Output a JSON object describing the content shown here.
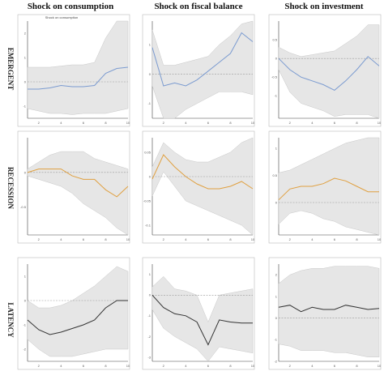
{
  "figure": {
    "column_titles": [
      "Shock on consumption",
      "Shock on fiscal balance",
      "Shock on investment"
    ],
    "row_labels": [
      "EMERGENT",
      "RECESSION",
      "LATENCY"
    ]
  },
  "chart_data": [
    {
      "type": "line",
      "row": 0,
      "col": 0,
      "title": "Shock on consumption",
      "panel_title": "Shock on consumption",
      "x": [
        1,
        2,
        3,
        4,
        5,
        6,
        7,
        8,
        9,
        10
      ],
      "xticks": [
        "2",
        "4",
        "6",
        "8",
        "10"
      ],
      "xlim": [
        1,
        10
      ],
      "ylim": [
        -1.5,
        2.5
      ],
      "yticks": [
        "-1",
        "0",
        "1",
        "2"
      ],
      "zero": 0,
      "line_color": "#7b9bd0",
      "irf": [
        -0.3,
        -0.3,
        -0.25,
        -0.15,
        -0.2,
        -0.2,
        -0.15,
        0.35,
        0.55,
        0.6
      ],
      "lower": [
        -1.1,
        -1.2,
        -1.3,
        -1.3,
        -1.35,
        -1.3,
        -1.3,
        -1.3,
        -1.2,
        -1.1
      ],
      "upper": [
        0.6,
        0.6,
        0.6,
        0.65,
        0.7,
        0.7,
        0.8,
        1.8,
        2.5,
        2.5
      ]
    },
    {
      "type": "line",
      "row": 0,
      "col": 1,
      "title": "Shock on fiscal balance",
      "x": [
        1,
        2,
        3,
        4,
        5,
        6,
        7,
        8,
        9,
        10
      ],
      "xticks": [
        "2",
        "4",
        "6",
        "8",
        "10"
      ],
      "xlim": [
        1,
        10
      ],
      "ylim": [
        -1.5,
        1.8
      ],
      "yticks": [
        "-1",
        "0",
        "1"
      ],
      "zero": 0,
      "line_color": "#7b9bd0",
      "irf": [
        0.9,
        -0.4,
        -0.3,
        -0.4,
        -0.2,
        0.1,
        0.4,
        0.7,
        1.4,
        1.1
      ],
      "lower": [
        -0.4,
        -1.5,
        -1.5,
        -1.2,
        -1.0,
        -0.8,
        -0.6,
        -0.6,
        -0.6,
        -0.7
      ],
      "upper": [
        1.5,
        0.3,
        0.3,
        0.4,
        0.5,
        0.6,
        1.0,
        1.3,
        1.7,
        1.8
      ]
    },
    {
      "type": "line",
      "row": 0,
      "col": 2,
      "title": "Shock on investment",
      "x": [
        1,
        2,
        3,
        4,
        5,
        6,
        7,
        8,
        9,
        10
      ],
      "xticks": [
        "2",
        "4",
        "6",
        "8",
        "10"
      ],
      "xlim": [
        1,
        10
      ],
      "ylim": [
        -1.6,
        1.0
      ],
      "yticks": [
        "-1",
        "-0.5",
        "0",
        "0.5"
      ],
      "zero": 0,
      "line_color": "#7b9bd0",
      "irf": [
        0,
        -0.3,
        -0.5,
        -0.6,
        -0.7,
        -0.85,
        -0.6,
        -0.3,
        0.05,
        -0.2
      ],
      "lower": [
        -0.3,
        -0.9,
        -1.2,
        -1.3,
        -1.4,
        -1.55,
        -1.5,
        -1.5,
        -1.5,
        -1.6
      ],
      "upper": [
        0.3,
        0.15,
        0.05,
        0.1,
        0.15,
        0.2,
        0.4,
        0.6,
        0.9,
        0.9
      ]
    },
    {
      "type": "line",
      "row": 1,
      "col": 0,
      "x": [
        1,
        2,
        3,
        4,
        5,
        6,
        7,
        8,
        9,
        10
      ],
      "xticks": [
        "2",
        "4",
        "6",
        "8",
        "10"
      ],
      "xlim": [
        1,
        10
      ],
      "ylim": [
        -0.9,
        0.5
      ],
      "yticks": [
        "-0.5",
        "0"
      ],
      "zero": 0,
      "line_color": "#e0a040",
      "irf": [
        0,
        0.05,
        0.05,
        0.05,
        -0.05,
        -0.1,
        -0.1,
        -0.25,
        -0.35,
        -0.2
      ],
      "lower": [
        -0.05,
        -0.1,
        -0.15,
        -0.2,
        -0.3,
        -0.45,
        -0.55,
        -0.65,
        -0.8,
        -0.9
      ],
      "upper": [
        0.05,
        0.15,
        0.25,
        0.3,
        0.3,
        0.3,
        0.2,
        0.15,
        0.1,
        0.05
      ]
    },
    {
      "type": "line",
      "row": 1,
      "col": 1,
      "x": [
        1,
        2,
        3,
        4,
        5,
        6,
        7,
        8,
        9,
        10
      ],
      "xticks": [
        "2",
        "4",
        "6",
        "8",
        "10"
      ],
      "xlim": [
        1,
        10
      ],
      "ylim": [
        -0.12,
        0.08
      ],
      "yticks": [
        "-0.1",
        "-0.05",
        "0",
        "0.05"
      ],
      "zero": 0,
      "line_color": "#e0a040",
      "irf": [
        -0.005,
        0.045,
        0.02,
        0.0,
        -0.015,
        -0.025,
        -0.025,
        -0.02,
        -0.01,
        -0.025
      ],
      "lower": [
        -0.04,
        0.01,
        -0.02,
        -0.05,
        -0.06,
        -0.07,
        -0.08,
        -0.09,
        -0.1,
        -0.12
      ],
      "upper": [
        0.02,
        0.07,
        0.05,
        0.035,
        0.03,
        0.03,
        0.04,
        0.05,
        0.07,
        0.08
      ]
    },
    {
      "type": "line",
      "row": 1,
      "col": 2,
      "x": [
        1,
        2,
        3,
        4,
        5,
        6,
        7,
        8,
        9,
        10
      ],
      "xticks": [
        "2",
        "4",
        "6",
        "8",
        "10"
      ],
      "xlim": [
        1,
        10
      ],
      "ylim": [
        -0.6,
        1.2
      ],
      "yticks": [
        "0",
        "0.5",
        "1"
      ],
      "zero": 0,
      "line_color": "#e0a040",
      "irf": [
        0.05,
        0.25,
        0.3,
        0.3,
        0.35,
        0.45,
        0.4,
        0.3,
        0.2,
        0.2
      ],
      "lower": [
        -0.4,
        -0.2,
        -0.15,
        -0.2,
        -0.3,
        -0.35,
        -0.45,
        -0.5,
        -0.55,
        -0.6
      ],
      "upper": [
        0.55,
        0.6,
        0.7,
        0.8,
        0.9,
        1.0,
        1.1,
        1.15,
        1.2,
        1.2
      ]
    },
    {
      "type": "line",
      "row": 2,
      "col": 0,
      "x": [
        1,
        2,
        3,
        4,
        5,
        6,
        7,
        8,
        9,
        10
      ],
      "xticks": [
        "2",
        "4",
        "6",
        "8",
        "10"
      ],
      "xlim": [
        1,
        10
      ],
      "ylim": [
        -2.5,
        1.5
      ],
      "yticks": [
        "-2",
        "-1",
        "0",
        "1"
      ],
      "zero": 0,
      "line_color": "#333333",
      "irf": [
        -0.8,
        -1.2,
        -1.4,
        -1.3,
        -1.15,
        -1.0,
        -0.8,
        -0.3,
        0.0,
        0.0
      ],
      "lower": [
        -1.6,
        -2.0,
        -2.3,
        -2.3,
        -2.3,
        -2.2,
        -2.1,
        -2.0,
        -2.0,
        -2.0
      ],
      "upper": [
        0.0,
        -0.3,
        -0.3,
        -0.2,
        0.0,
        0.3,
        0.6,
        1.0,
        1.4,
        1.2
      ]
    },
    {
      "type": "line",
      "row": 2,
      "col": 1,
      "x": [
        1,
        2,
        3,
        4,
        5,
        6,
        7,
        8,
        9,
        10
      ],
      "xticks": [
        "2",
        "4",
        "6",
        "8",
        "10"
      ],
      "xlim": [
        1,
        10
      ],
      "ylim": [
        -3.2,
        1.5
      ],
      "yticks": [
        "-3",
        "-2",
        "-1",
        "0",
        "1"
      ],
      "zero": 0,
      "line_color": "#333333",
      "irf": [
        0.0,
        -0.6,
        -0.9,
        -1.0,
        -1.3,
        -2.4,
        -1.2,
        -1.3,
        -1.35,
        -1.35
      ],
      "lower": [
        -0.7,
        -1.6,
        -2.0,
        -2.3,
        -2.6,
        -3.2,
        -2.5,
        -2.6,
        -2.7,
        -2.8
      ],
      "upper": [
        0.4,
        0.9,
        0.3,
        0.2,
        0.0,
        -1.3,
        0.0,
        0.1,
        0.2,
        0.3
      ]
    },
    {
      "type": "line",
      "row": 2,
      "col": 2,
      "x": [
        1,
        2,
        3,
        4,
        5,
        6,
        7,
        8,
        9,
        10
      ],
      "xticks": [
        "2",
        "4",
        "6",
        "8",
        "10"
      ],
      "xlim": [
        1,
        10
      ],
      "ylim": [
        -2.0,
        2.5
      ],
      "yticks": [
        "-2",
        "-1",
        "0",
        "1",
        "2"
      ],
      "zero": 0,
      "line_color": "#333333",
      "irf": [
        0.5,
        0.6,
        0.3,
        0.5,
        0.4,
        0.4,
        0.6,
        0.5,
        0.4,
        0.45
      ],
      "lower": [
        -1.2,
        -1.3,
        -1.5,
        -1.5,
        -1.5,
        -1.6,
        -1.6,
        -1.7,
        -1.8,
        -1.8
      ],
      "upper": [
        1.6,
        2.0,
        2.2,
        2.3,
        2.3,
        2.4,
        2.4,
        2.4,
        2.4,
        2.3
      ]
    }
  ]
}
